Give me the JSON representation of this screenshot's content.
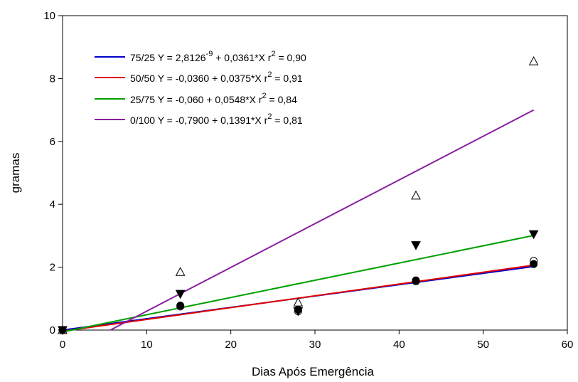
{
  "chart_data": {
    "type": "scatter",
    "xlabel": "Dias  Após Emergência",
    "ylabel": "gramas",
    "xlim": [
      0,
      60
    ],
    "ylim": [
      0,
      10
    ],
    "xticks": [
      0,
      10,
      20,
      30,
      40,
      50,
      60
    ],
    "yticks": [
      0,
      2,
      4,
      6,
      8,
      10
    ],
    "grid": false,
    "legend_position": "top-left",
    "series": [
      {
        "name": "75/25",
        "color": "#0000cc",
        "equation": "Y = 2,8126",
        "equation_exp": "-9",
        "equation_rest": " + 0,0361*X  r",
        "r2_exp": "2",
        "r2_value": " = 0,90",
        "intercept": 0.0,
        "slope": 0.0361,
        "fit_x": [
          0,
          56
        ],
        "marker": "circle-open",
        "points": [
          {
            "x": 0,
            "y": 0
          },
          {
            "x": 14,
            "y": 0.75
          },
          {
            "x": 28,
            "y": 0.6
          },
          {
            "x": 42,
            "y": 1.55
          },
          {
            "x": 56,
            "y": 2.2
          }
        ]
      },
      {
        "name": "50/50",
        "color": "#e00000",
        "equation": "Y = -0,0360 + 0,0375*X  r",
        "r2_exp": "2",
        "r2_value": " = 0,91",
        "intercept": -0.036,
        "slope": 0.0375,
        "fit_x": [
          0,
          56
        ],
        "marker": "circle-filled",
        "points": [
          {
            "x": 0,
            "y": 0
          },
          {
            "x": 14,
            "y": 0.78
          },
          {
            "x": 28,
            "y": 0.65
          },
          {
            "x": 42,
            "y": 1.58
          },
          {
            "x": 56,
            "y": 2.1
          }
        ]
      },
      {
        "name": "25/75",
        "color": "#00a000",
        "equation": "Y = -0,060 + 0,0548*X  r",
        "r2_exp": "2",
        "r2_value": " = 0,84",
        "intercept": -0.06,
        "slope": 0.0548,
        "fit_x": [
          0,
          56
        ],
        "marker": "triangle-down-filled",
        "points": [
          {
            "x": 0,
            "y": 0
          },
          {
            "x": 14,
            "y": 1.15
          },
          {
            "x": 28,
            "y": 0.6
          },
          {
            "x": 42,
            "y": 2.7
          },
          {
            "x": 56,
            "y": 3.05
          }
        ]
      },
      {
        "name": "0/100",
        "color": "#8a1fa0",
        "equation": "Y = -0,7900 + 0,1391*X  r",
        "r2_exp": "2",
        "r2_value": " = 0,81",
        "intercept": -0.79,
        "slope": 0.1391,
        "fit_x": [
          5.68,
          56
        ],
        "marker": "triangle-up-open",
        "points": [
          {
            "x": 0,
            "y": 0
          },
          {
            "x": 14,
            "y": 1.85
          },
          {
            "x": 28,
            "y": 0.88
          },
          {
            "x": 42,
            "y": 4.28
          },
          {
            "x": 56,
            "y": 8.55
          }
        ]
      }
    ]
  }
}
